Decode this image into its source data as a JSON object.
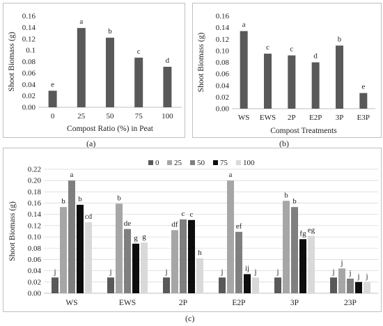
{
  "panel_labels": [
    "(a)",
    "(b)",
    "(c)"
  ],
  "colors": {
    "single_bar": "#595959",
    "grid": "#d9d9d9",
    "axis": "#bfbfbf",
    "series": [
      "#595959",
      "#a6a6a6",
      "#7f7f7f",
      "#0d0d0d",
      "#d9d9d9"
    ]
  },
  "chart_data": [
    {
      "type": "bar",
      "title": "",
      "xlabel": "Compost Ratio (%) in Peat",
      "ylabel": "Shoot Biomass (g)",
      "ylim": [
        0,
        0.16
      ],
      "yticks": [
        "0.00",
        "0.02",
        "0.04",
        "0.06",
        "0.08",
        "0.1",
        "0.12",
        "0.14",
        "0.16"
      ],
      "grid": false,
      "categories": [
        "0",
        "25",
        "50",
        "75",
        "100"
      ],
      "values": [
        0.029,
        0.139,
        0.122,
        0.087,
        0.071
      ],
      "annotations": [
        "e",
        "a",
        "b",
        "c",
        "d"
      ]
    },
    {
      "type": "bar",
      "title": "",
      "xlabel": "Compost Treatments",
      "ylabel": "Shoot Biomass (g)",
      "ylim": [
        0,
        0.16
      ],
      "yticks": [
        "0.00",
        "0.02",
        "0.04",
        "0.06",
        "0.08",
        "0.10",
        "0.12",
        "0.14",
        "0.16"
      ],
      "grid": false,
      "categories": [
        "WS",
        "EWS",
        "2P",
        "E2P",
        "3P",
        "E3P"
      ],
      "values": [
        0.134,
        0.095,
        0.092,
        0.08,
        0.109,
        0.027
      ],
      "annotations": [
        "a",
        "c",
        "c",
        "d",
        "b",
        "e"
      ]
    },
    {
      "type": "bar",
      "title": "",
      "xlabel": "",
      "ylabel": "Shoot Biomass (g)",
      "ylim": [
        0,
        0.22
      ],
      "yticks": [
        "0.00",
        "0.02",
        "0.04",
        "0.06",
        "0.08",
        "0.10",
        "0.12",
        "0.14",
        "0.16",
        "0.18",
        "0.20",
        "0.22"
      ],
      "grid": true,
      "legend": "top",
      "categories": [
        "WS",
        "EWS",
        "2P",
        "E2P",
        "3P",
        "23P"
      ],
      "series": [
        {
          "name": "0",
          "values": [
            0.028,
            0.028,
            0.028,
            0.028,
            0.028,
            0.028
          ],
          "annotations": [
            "j",
            "j",
            "j",
            "j",
            "j",
            "j"
          ]
        },
        {
          "name": "25",
          "values": [
            0.153,
            0.159,
            0.112,
            0.2,
            0.164,
            0.044
          ],
          "annotations": [
            "b",
            "b",
            "df",
            "a",
            "b",
            "j"
          ]
        },
        {
          "name": "50",
          "values": [
            0.2,
            0.114,
            0.131,
            0.109,
            0.153,
            0.026
          ],
          "annotations": [
            "a",
            "de",
            "c",
            "ef",
            "b",
            "j"
          ]
        },
        {
          "name": "75",
          "values": [
            0.157,
            0.088,
            0.13,
            0.034,
            0.096,
            0.02
          ],
          "annotations": [
            "b",
            "g",
            "c",
            "ij",
            "fg",
            "j"
          ]
        },
        {
          "name": "100",
          "values": [
            0.126,
            0.09,
            0.062,
            0.028,
            0.102,
            0.02
          ],
          "annotations": [
            "cd",
            "g",
            "h",
            "j",
            "eg",
            "j"
          ]
        }
      ]
    }
  ]
}
